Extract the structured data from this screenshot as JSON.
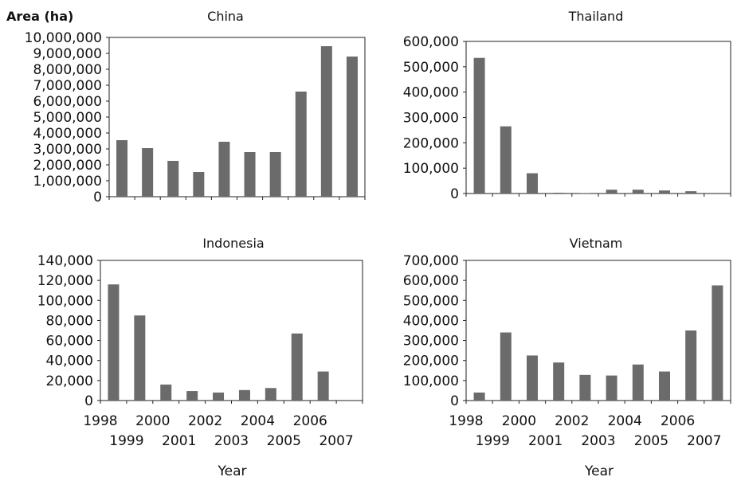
{
  "chart_data": [
    {
      "type": "bar",
      "title": "China",
      "ylabel": "Area (ha)",
      "xlabel": "",
      "categories": [
        "1998",
        "1999",
        "2000",
        "2001",
        "2002",
        "2003",
        "2004",
        "2005",
        "2006",
        "2007"
      ],
      "values": [
        3550000,
        3050000,
        2250000,
        1550000,
        3450000,
        2800000,
        2800000,
        6600000,
        9450000,
        8800000
      ],
      "ylim": [
        0,
        10000000
      ],
      "yticks": [
        "0",
        "1,000,000",
        "2,000,000",
        "3,000,000",
        "4,000,000",
        "5,000,000",
        "6,000,000",
        "7,000,000",
        "8,000,000",
        "9,000,000",
        "10,000,000"
      ],
      "xtick_labels_shown": false,
      "grid": false,
      "bar_color": "#6b6b6b"
    },
    {
      "type": "bar",
      "title": "Thailand",
      "ylabel": "",
      "xlabel": "",
      "categories": [
        "1998",
        "1999",
        "2000",
        "2001",
        "2002",
        "2003",
        "2004",
        "2005",
        "2006",
        "2007"
      ],
      "values": [
        535000,
        265000,
        80000,
        3000,
        1000,
        15000,
        15000,
        12000,
        9000,
        0
      ],
      "ylim": [
        0,
        600000
      ],
      "yticks": [
        "0",
        "100,000",
        "200,000",
        "300,000",
        "400,000",
        "500,000",
        "600,000"
      ],
      "xtick_labels_shown": false,
      "grid": false,
      "bar_color": "#6b6b6b"
    },
    {
      "type": "bar",
      "title": "Indonesia",
      "ylabel": "",
      "xlabel": "Year",
      "categories": [
        "1998",
        "1999",
        "2000",
        "2001",
        "2002",
        "2003",
        "2004",
        "2005",
        "2006",
        "2007"
      ],
      "values": [
        116000,
        85000,
        16000,
        9500,
        8000,
        10500,
        12500,
        67000,
        29000,
        0
      ],
      "ylim": [
        0,
        140000
      ],
      "yticks": [
        "0",
        "20,000",
        "40,000",
        "60,000",
        "80,000",
        "100,000",
        "120,000",
        "140,000"
      ],
      "xtick_labels_shown": true,
      "grid": false,
      "bar_color": "#6b6b6b"
    },
    {
      "type": "bar",
      "title": "Vietnam",
      "ylabel": "",
      "xlabel": "Year",
      "categories": [
        "1998",
        "1999",
        "2000",
        "2001",
        "2002",
        "2003",
        "2004",
        "2005",
        "2006",
        "2007"
      ],
      "values": [
        40000,
        340000,
        225000,
        190000,
        128000,
        125000,
        180000,
        145000,
        350000,
        575000
      ],
      "ylim": [
        0,
        700000
      ],
      "yticks": [
        "0",
        "100,000",
        "200,000",
        "300,000",
        "400,000",
        "500,000",
        "600,000",
        "700,000"
      ],
      "xtick_labels_shown": true,
      "grid": false,
      "bar_color": "#6b6b6b"
    }
  ]
}
